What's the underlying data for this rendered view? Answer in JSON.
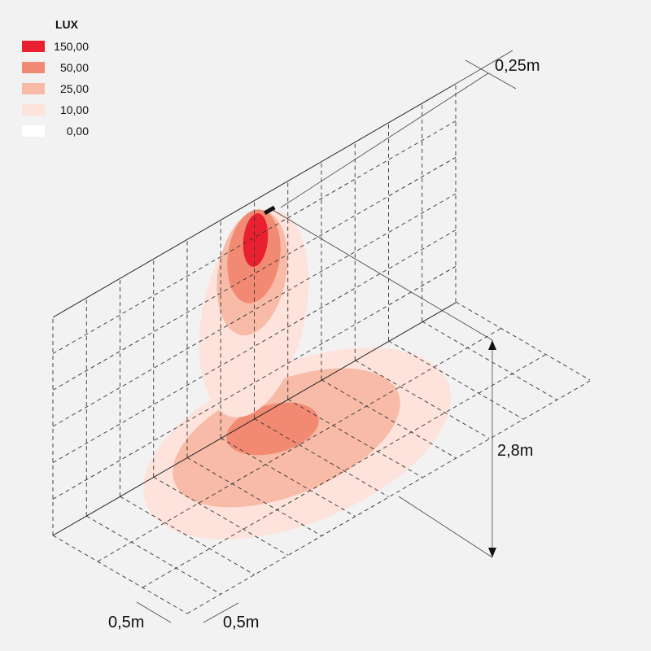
{
  "legend": {
    "title": "LUX",
    "items": [
      {
        "label": "150,00",
        "color": "#e8202f"
      },
      {
        "label": "50,00",
        "color": "#f28a73"
      },
      {
        "label": "25,00",
        "color": "#f7bba8"
      },
      {
        "label": "10,00",
        "color": "#fde3db"
      },
      {
        "label": "0,00",
        "color": "#ffffff"
      }
    ]
  },
  "dimensions": {
    "mount_offset": "0,25m",
    "height": "2,8m",
    "grid_x": "0,5m",
    "grid_y": "0,5m"
  }
}
